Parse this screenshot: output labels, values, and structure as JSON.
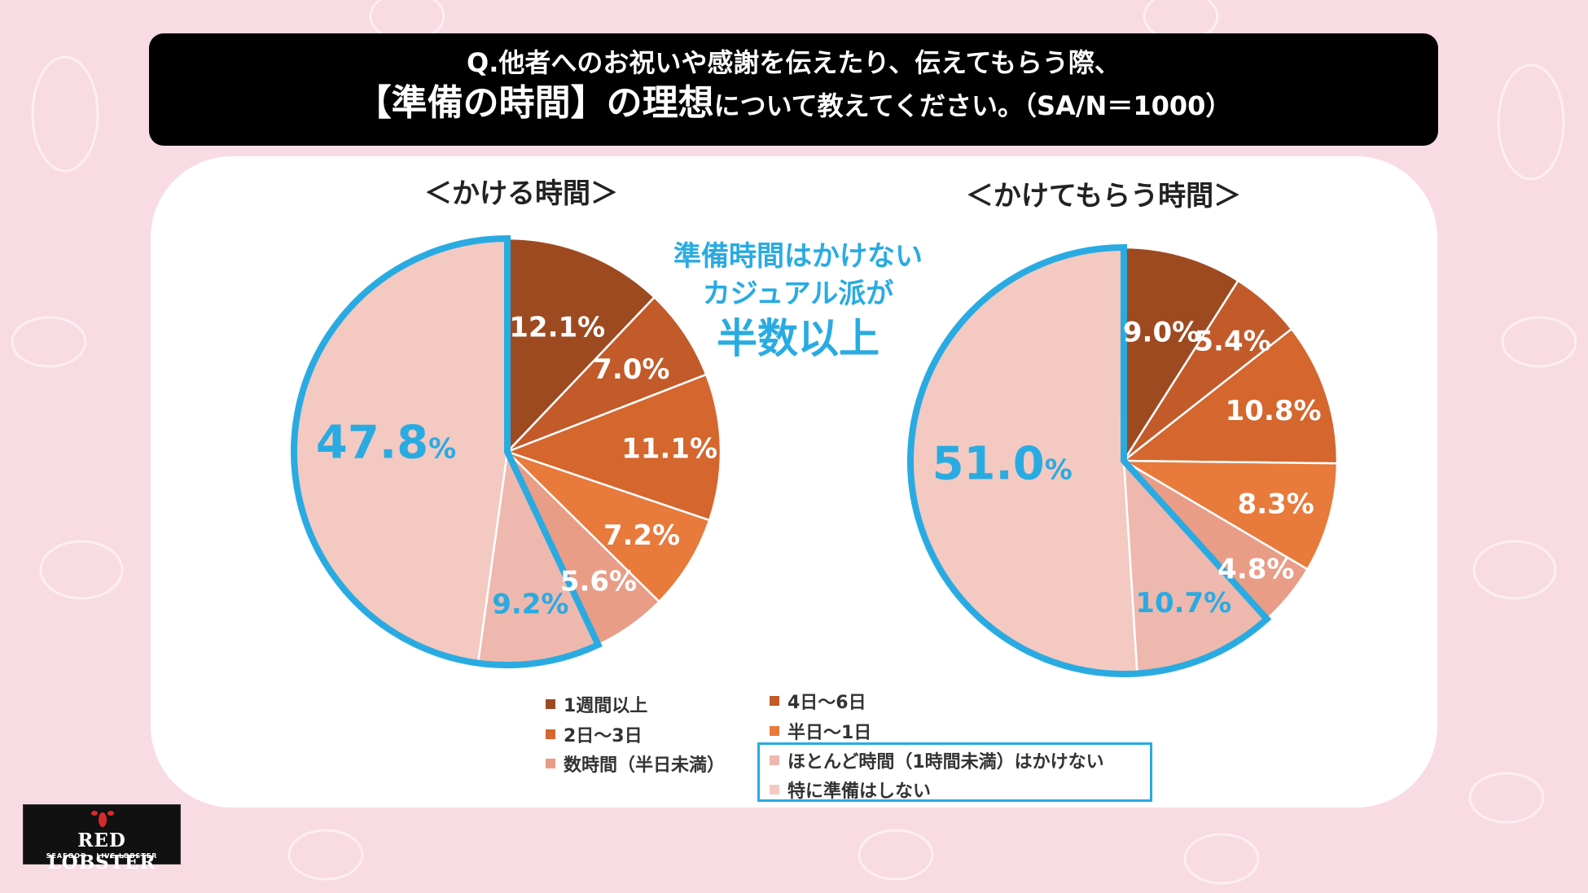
{
  "title": {
    "line1": "Q.他者へのお祝いや感謝を伝えたり、伝えてもらう際、",
    "line2_emph": "【準備の時間】の理想",
    "line2_rest": "について教えてください。（SA/N＝1000）"
  },
  "callout": {
    "line1": "準備時間はかけない",
    "line2": "カジュアル派が",
    "line3": "半数以上"
  },
  "colors": [
    "#9e4a21",
    "#c25a2a",
    "#d4662e",
    "#e87a3c",
    "#e99c86",
    "#efb8ae",
    "#f3c9c1"
  ],
  "highlight_color": "#29abe2",
  "chart_data": [
    {
      "type": "pie",
      "title": "＜かける時間＞",
      "categories": [
        "1週間以上",
        "4日～6日",
        "2日～3日",
        "半日～1日",
        "数時間（半日未満）",
        "ほとんど時間（1時間未満）はかけない",
        "特に準備はしない"
      ],
      "values": [
        12.1,
        7.0,
        11.1,
        7.2,
        5.6,
        9.2,
        47.8
      ],
      "labels": [
        "12.1%",
        "7.0%",
        "11.1%",
        "7.2%",
        "5.6%",
        "9.2%"
      ],
      "big_value": "47.8",
      "big_unit": "%",
      "highlight_from_index": 5
    },
    {
      "type": "pie",
      "title": "＜かけてもらう時間＞",
      "categories": [
        "1週間以上",
        "4日～6日",
        "2日～3日",
        "半日～1日",
        "数時間（半日未満）",
        "ほとんど時間（1時間未満）はかけない",
        "特に準備はしない"
      ],
      "values": [
        9.0,
        5.4,
        10.8,
        8.3,
        4.8,
        10.7,
        51.0
      ],
      "labels": [
        "9.0%",
        "5.4%",
        "10.8%",
        "8.3%",
        "4.8%",
        "10.7%"
      ],
      "big_value": "51.0",
      "big_unit": "%",
      "highlight_from_index": 5
    }
  ],
  "legend": [
    {
      "label": "1週間以上"
    },
    {
      "label": "4日～6日"
    },
    {
      "label": "2日～3日"
    },
    {
      "label": "半日～1日"
    },
    {
      "label": "数時間（半日未満）"
    },
    {
      "label": "ほとんど時間（1時間未満）はかけない"
    },
    {
      "label": "特に準備はしない"
    }
  ],
  "logo": {
    "main": "RED LOBSTER",
    "sub": "SEAFOOD · LIVE LOBSTER"
  }
}
